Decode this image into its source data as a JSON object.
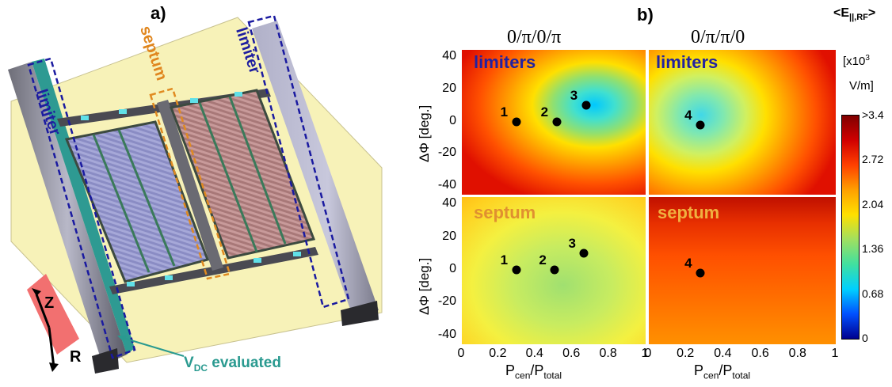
{
  "panel_a": {
    "label": "a)",
    "limiter_left": "limiter",
    "septum": "septum",
    "limiter_right": "limiter",
    "axis_z": "Z",
    "axis_r": "R",
    "vdc_main": "V",
    "vdc_sub": "DC",
    "vdc_rest": " evaluated"
  },
  "panel_b": {
    "label": "b)",
    "mode_left": "0/π/0/π",
    "mode_right": "0/π/π/0",
    "colorbar": {
      "title_main": "<E",
      "title_sub": "||,RF",
      "title_end": ">",
      "units_line1": "[x10",
      "units_exp": "3",
      "units_line2": "V/m]",
      "ticks": [
        ">3.4",
        "2.72",
        "2.04",
        "1.36",
        "0.68",
        "0"
      ],
      "colors": [
        "#00008f",
        "#0050ff",
        "#00d0ff",
        "#40e0a0",
        "#a0e060",
        "#ffe000",
        "#ffa000",
        "#ff4000",
        "#d00000",
        "#800000"
      ]
    },
    "y_ticks": [
      "40",
      "20",
      "0",
      "-20",
      "-40"
    ],
    "x_ticks": [
      "0",
      "0.2",
      "0.4",
      "0.6",
      "0.8",
      "1"
    ],
    "y_label": "ΔΦ [deg.]",
    "x_label_main": "P",
    "x_label_sub1": "cen",
    "x_label_sep": "/P",
    "x_label_sub2": "total",
    "maps": [
      {
        "region": "limiters",
        "mode": "0/π/0/π",
        "points": [
          {
            "id": "1",
            "p": 0.3,
            "phi": 0
          },
          {
            "id": "2",
            "p": 0.52,
            "phi": 0
          },
          {
            "id": "3",
            "p": 0.68,
            "phi": 10
          }
        ]
      },
      {
        "region": "limiters",
        "mode": "0/π/π/0",
        "points": [
          {
            "id": "4",
            "p": 0.28,
            "phi": -2
          }
        ]
      },
      {
        "region": "septum",
        "mode": "0/π/0/π",
        "points": [
          {
            "id": "1",
            "p": 0.3,
            "phi": 0
          },
          {
            "id": "2",
            "p": 0.51,
            "phi": 0
          },
          {
            "id": "3",
            "p": 0.67,
            "phi": 10
          }
        ]
      },
      {
        "region": "septum",
        "mode": "0/π/π/0",
        "points": [
          {
            "id": "4",
            "p": 0.28,
            "phi": -2
          }
        ]
      }
    ]
  }
}
